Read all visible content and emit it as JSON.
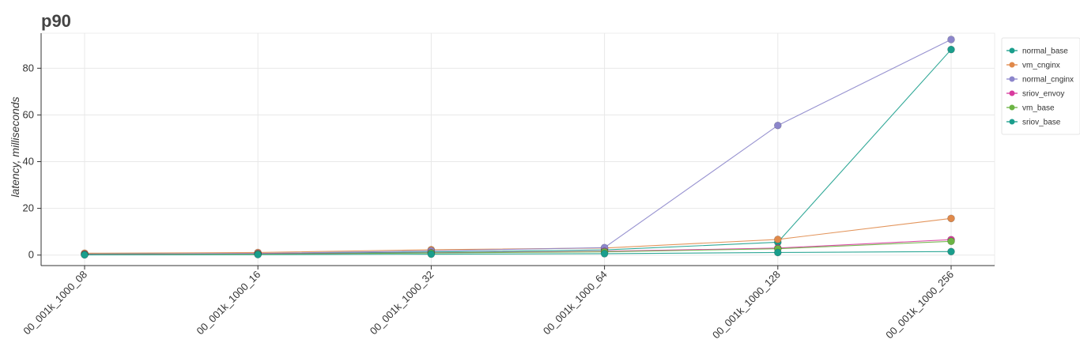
{
  "chart_data": {
    "type": "line",
    "title": "p90",
    "xlabel": "",
    "ylabel": "latency, milliseconds",
    "categories": [
      "00_001k_1000_08",
      "00_001k_1000_16",
      "00_001k_1000_32",
      "00_001k_1000_64",
      "00_001k_1000_128",
      "00_001k_1000_256"
    ],
    "yticks": [
      0,
      20,
      40,
      60,
      80
    ],
    "ylim": [
      -4.5,
      95
    ],
    "grid": true,
    "legend_position": "top-right",
    "series": [
      {
        "name": "normal_base",
        "color": "#1a9e8c",
        "values": [
          0.5,
          0.6,
          1.3,
          2.2,
          5.5,
          88.0
        ]
      },
      {
        "name": "vm_cnginx",
        "color": "#e0894a",
        "values": [
          0.8,
          1.1,
          2.3,
          3.0,
          6.7,
          15.7
        ]
      },
      {
        "name": "normal_cnginx",
        "color": "#8c86cb",
        "values": [
          0.4,
          0.7,
          1.8,
          3.2,
          55.5,
          92.3
        ]
      },
      {
        "name": "sriov_envoy",
        "color": "#d83b9e",
        "values": [
          0.3,
          0.5,
          1.0,
          1.6,
          3.0,
          6.6
        ]
      },
      {
        "name": "vm_base",
        "color": "#6cb444",
        "values": [
          0.2,
          0.4,
          0.9,
          1.4,
          2.7,
          5.9
        ]
      },
      {
        "name": "sriov_base",
        "color": "#1a9e8c",
        "values": [
          0.1,
          0.2,
          0.4,
          0.6,
          1.1,
          1.5
        ]
      }
    ]
  }
}
